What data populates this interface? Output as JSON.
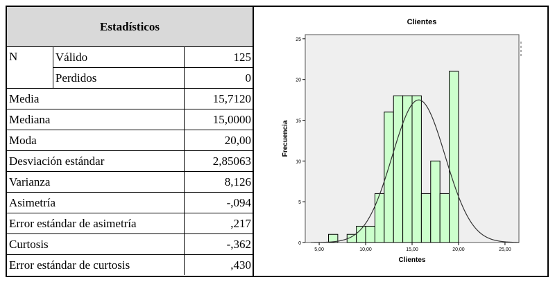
{
  "stats_table": {
    "title": "Estadísticos",
    "n_label": "N",
    "rows": [
      {
        "sub": "Válido",
        "value": "125"
      },
      {
        "sub": "Perdidos",
        "value": "0"
      }
    ],
    "measures": [
      {
        "label": "Media",
        "value": "15,7120"
      },
      {
        "label": "Mediana",
        "value": "15,0000"
      },
      {
        "label": "Moda",
        "value": "20,00"
      },
      {
        "label": "Desviación estándar",
        "value": "2,85063"
      },
      {
        "label": "Varianza",
        "value": "8,126"
      },
      {
        "label": "Asimetría",
        "value": "-,094"
      },
      {
        "label": "Error estándar de asimetría",
        "value": ",217"
      },
      {
        "label": "Curtosis",
        "value": "-,362"
      },
      {
        "label": "Error estándar de curtosis",
        "value": ",430"
      }
    ]
  },
  "chart_data": {
    "type": "bar",
    "title": "Clientes",
    "xlabel": "Clientes",
    "ylabel": "Frecuencia",
    "xlim": [
      3.5,
      26.5
    ],
    "ylim": [
      0,
      25.5
    ],
    "bin_width": 1,
    "bin_starts": [
      6,
      7,
      8,
      9,
      10,
      11,
      12,
      13,
      14,
      15,
      16,
      17,
      18,
      19,
      20
    ],
    "values": [
      1,
      0,
      1,
      2,
      2,
      6,
      16,
      18,
      18,
      18,
      6,
      10,
      6,
      21,
      0
    ],
    "x_ticks": [
      5,
      10,
      15,
      20,
      25
    ],
    "x_tick_labels": [
      "5,00",
      "10,00",
      "15,00",
      "20,00",
      "25,00"
    ],
    "y_ticks": [
      0,
      5,
      10,
      15,
      20,
      25
    ],
    "y_tick_labels": [
      "0",
      "5",
      "10",
      "15",
      "20",
      "25"
    ],
    "normal_curve": {
      "mean": 15.712,
      "sd": 2.85063,
      "n": 125
    },
    "colors": {
      "bar_fill": "#ccffcc",
      "bar_stroke": "#000000",
      "plot_bg": "#efefef",
      "curve": "#333333"
    }
  }
}
